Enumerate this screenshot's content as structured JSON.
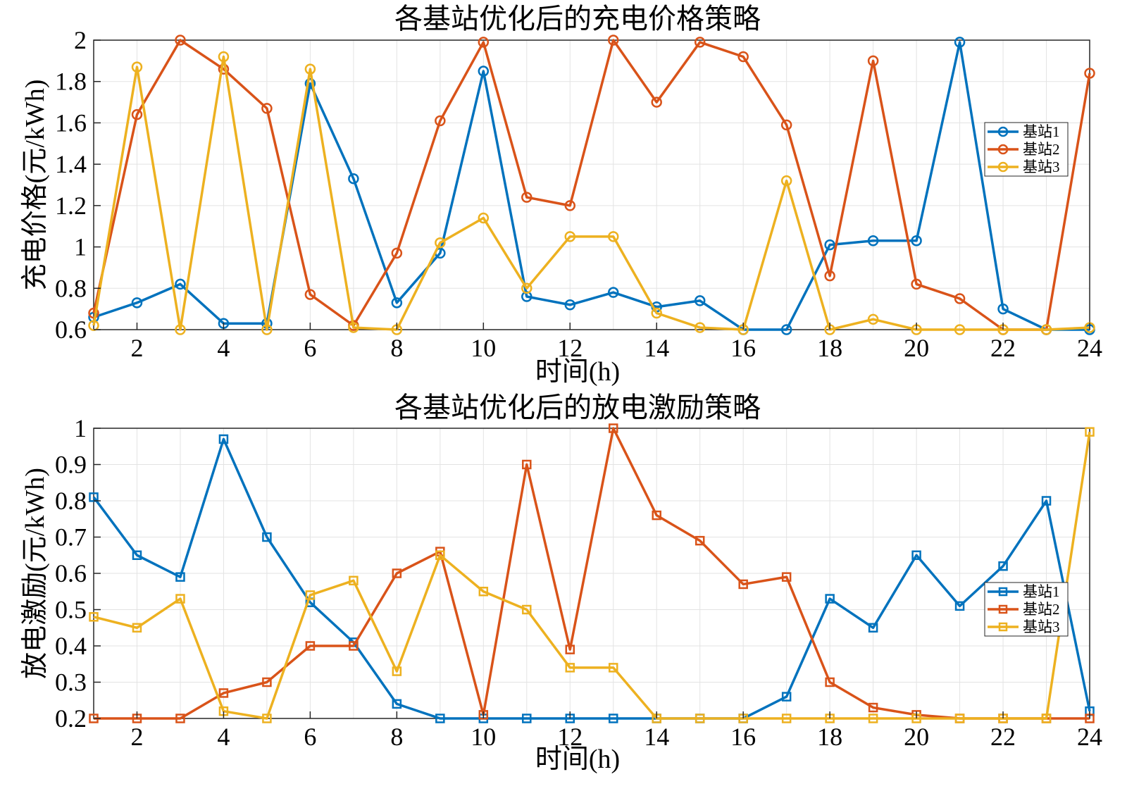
{
  "chart_data": [
    {
      "type": "line",
      "title": "各基站优化后的充电价格策略",
      "xlabel": "时间(h)",
      "ylabel": "充电价格(元/kWh)",
      "xlim": [
        1,
        24
      ],
      "ylim": [
        0.6,
        2
      ],
      "xticks": [
        2,
        4,
        6,
        8,
        10,
        12,
        14,
        16,
        18,
        20,
        22,
        24
      ],
      "xtick_labels": [
        "2",
        "4",
        "6",
        "8",
        "10",
        "12",
        "14",
        "16",
        "18",
        "20",
        "22",
        "24"
      ],
      "yticks": [
        0.6,
        0.8,
        1,
        1.2,
        1.4,
        1.6,
        1.8,
        2
      ],
      "ytick_labels": [
        "0.6",
        "0.8",
        "1",
        "1.2",
        "1.4",
        "1.6",
        "1.8",
        "2"
      ],
      "grid": true,
      "marker": "circle",
      "legend_position": "right",
      "x": [
        1,
        2,
        3,
        4,
        5,
        6,
        7,
        8,
        9,
        10,
        11,
        12,
        13,
        14,
        15,
        16,
        17,
        18,
        19,
        20,
        21,
        22,
        23,
        24
      ],
      "series": [
        {
          "name": "基站1",
          "color": "#0072BD",
          "values": [
            0.66,
            0.73,
            0.82,
            0.63,
            0.63,
            1.79,
            1.33,
            0.73,
            0.97,
            1.85,
            0.76,
            0.72,
            0.78,
            0.71,
            0.74,
            0.6,
            0.6,
            1.01,
            1.03,
            1.03,
            1.99,
            0.7,
            0.6,
            0.6
          ]
        },
        {
          "name": "基站2",
          "color": "#D95319",
          "values": [
            0.68,
            1.64,
            2.0,
            1.86,
            1.67,
            0.77,
            0.62,
            0.97,
            1.61,
            1.99,
            1.24,
            1.2,
            2.0,
            1.7,
            1.99,
            1.92,
            1.59,
            0.86,
            1.9,
            0.82,
            0.75,
            0.6,
            0.6,
            1.84
          ]
        },
        {
          "name": "基站3",
          "color": "#EDB120",
          "values": [
            0.62,
            1.87,
            0.6,
            1.92,
            0.6,
            1.86,
            0.61,
            0.6,
            1.02,
            1.14,
            0.8,
            1.05,
            1.05,
            0.68,
            0.61,
            0.6,
            1.32,
            0.6,
            0.65,
            0.6,
            0.6,
            0.6,
            0.6,
            0.61
          ]
        }
      ]
    },
    {
      "type": "line",
      "title": "各基站优化后的放电激励策略",
      "xlabel": "时间(h)",
      "ylabel": "放电激励(元/kWh)",
      "xlim": [
        1,
        24
      ],
      "ylim": [
        0.2,
        1
      ],
      "xticks": [
        2,
        4,
        6,
        8,
        10,
        12,
        14,
        16,
        18,
        20,
        22,
        24
      ],
      "xtick_labels": [
        "2",
        "4",
        "6",
        "8",
        "10",
        "12",
        "14",
        "16",
        "18",
        "20",
        "22",
        "24"
      ],
      "yticks": [
        0.2,
        0.3,
        0.4,
        0.5,
        0.6,
        0.7,
        0.8,
        0.9,
        1
      ],
      "ytick_labels": [
        "0.2",
        "0.3",
        "0.4",
        "0.5",
        "0.6",
        "0.7",
        "0.8",
        "0.9",
        "1"
      ],
      "grid": true,
      "marker": "square",
      "legend_position": "right",
      "x": [
        1,
        2,
        3,
        4,
        5,
        6,
        7,
        8,
        9,
        10,
        11,
        12,
        13,
        14,
        15,
        16,
        17,
        18,
        19,
        20,
        21,
        22,
        23,
        24
      ],
      "series": [
        {
          "name": "基站1",
          "color": "#0072BD",
          "values": [
            0.81,
            0.65,
            0.59,
            0.97,
            0.7,
            0.52,
            0.41,
            0.24,
            0.2,
            0.2,
            0.2,
            0.2,
            0.2,
            0.2,
            0.2,
            0.2,
            0.26,
            0.53,
            0.45,
            0.65,
            0.51,
            0.62,
            0.8,
            0.22
          ]
        },
        {
          "name": "基站2",
          "color": "#D95319",
          "values": [
            0.2,
            0.2,
            0.2,
            0.27,
            0.3,
            0.4,
            0.4,
            0.6,
            0.66,
            0.21,
            0.9,
            0.39,
            1.0,
            0.76,
            0.69,
            0.57,
            0.59,
            0.3,
            0.23,
            0.21,
            0.2,
            0.2,
            0.2,
            0.2
          ]
        },
        {
          "name": "基站3",
          "color": "#EDB120",
          "values": [
            0.48,
            0.45,
            0.53,
            0.22,
            0.2,
            0.54,
            0.58,
            0.33,
            0.65,
            0.55,
            0.5,
            0.34,
            0.34,
            0.2,
            0.2,
            0.2,
            0.2,
            0.2,
            0.2,
            0.2,
            0.2,
            0.2,
            0.2,
            0.99
          ]
        }
      ]
    }
  ]
}
